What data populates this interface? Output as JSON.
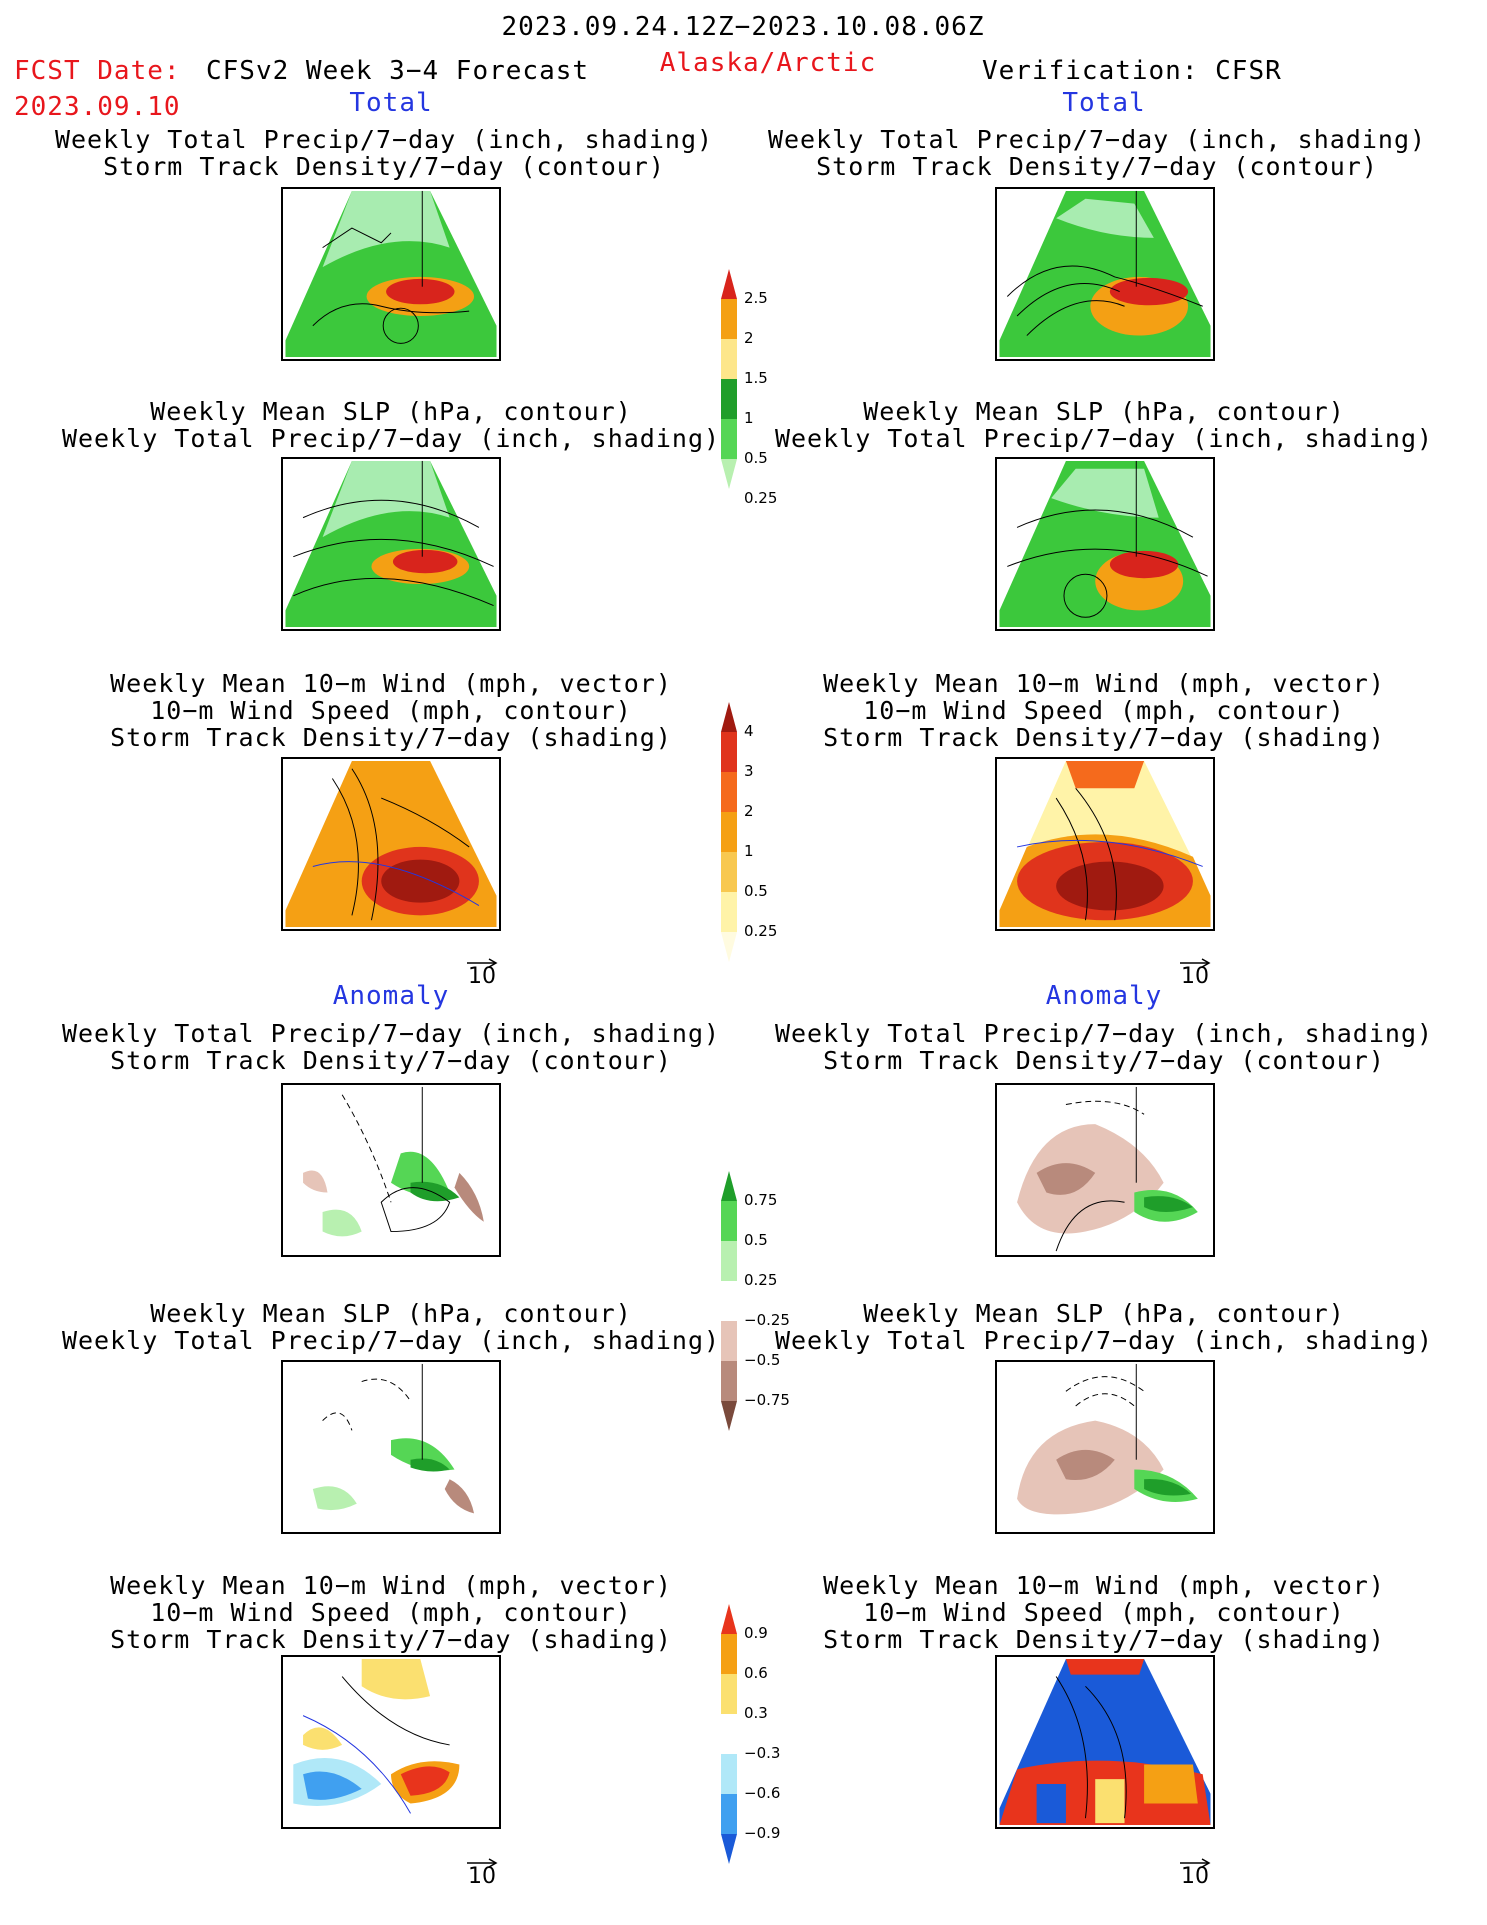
{
  "header": {
    "period": "2023.09.24.12Z−2023.10.08.06Z",
    "fcst_label": "FCST Date:",
    "fcst_date": "2023.09.10",
    "forecast_name": "CFSv2 Week 3−4 Forecast",
    "region": "Alaska/Arctic",
    "verification": "Verification: CFSR"
  },
  "sections": {
    "total": "Total",
    "anomaly": "Anomaly"
  },
  "panels": {
    "precip_storm": [
      "Weekly Total Precip/7−day (inch, shading)",
      "Storm Track Density/7−day (contour)"
    ],
    "slp_precip": [
      "Weekly Mean SLP (hPa, contour)",
      "Weekly Total Precip/7−day (inch, shading)"
    ],
    "wind_storm": [
      "Weekly Mean 10−m Wind (mph, vector)",
      "10−m Wind Speed (mph, contour)",
      "Storm Track Density/7−day (shading)"
    ]
  },
  "vector_ref": "10",
  "colorbars": {
    "precip_total": {
      "labels": [
        "2.5",
        "2",
        "1.5",
        "1",
        "0.5",
        "0.25"
      ],
      "colors": [
        "#d8241c",
        "#f4a014",
        "#fde68a",
        "#1f9e2a",
        "#55d655",
        "#b8f0b0"
      ]
    },
    "storm_total": {
      "labels": [
        "4",
        "3",
        "2",
        "1",
        "0.5",
        "0.25"
      ],
      "colors": [
        "#a01a10",
        "#e0341c",
        "#f56a1c",
        "#f5a014",
        "#f8c850",
        "#fff3a8",
        "#fffbe0"
      ]
    },
    "precip_anom": {
      "labels": [
        "0.75",
        "0.5",
        "0.25",
        "−0.25",
        "−0.5",
        "−0.75"
      ],
      "colors": [
        "#1f9e2a",
        "#55d655",
        "#b8f0b0",
        "#ffffff",
        "#e6c4b8",
        "#b88a7c",
        "#7a4a3c"
      ]
    },
    "storm_anom": {
      "labels": [
        "0.9",
        "0.6",
        "0.3",
        "−0.3",
        "−0.6",
        "−0.9"
      ],
      "colors": [
        "#e8341c",
        "#f5a014",
        "#fbe070",
        "#ffffff",
        "#b0e8f8",
        "#40a0f0",
        "#1a5ad8"
      ]
    }
  },
  "map_shading": {
    "r1_left": {
      "base": "#3cc83c",
      "north": "#a8ecb0",
      "hot": "#d8241c",
      "warm": "#f4a014"
    },
    "r1_right": {
      "base": "#3cc83c",
      "north": "#a8ecb0",
      "hot": "#d8241c",
      "warm": "#f4a014"
    },
    "r3_left": {
      "base": "#f5a014",
      "hot": "#a01a10"
    },
    "r3_right": {
      "base": "#f5a014",
      "hot": "#a01a10"
    },
    "a3_left": {
      "base": "#ffffff",
      "warm": "#fbe070",
      "cold": "#40a0f0",
      "hot": "#e8341c"
    },
    "a3_right": {
      "base": "#1a5ad8",
      "hot": "#e8341c"
    }
  }
}
